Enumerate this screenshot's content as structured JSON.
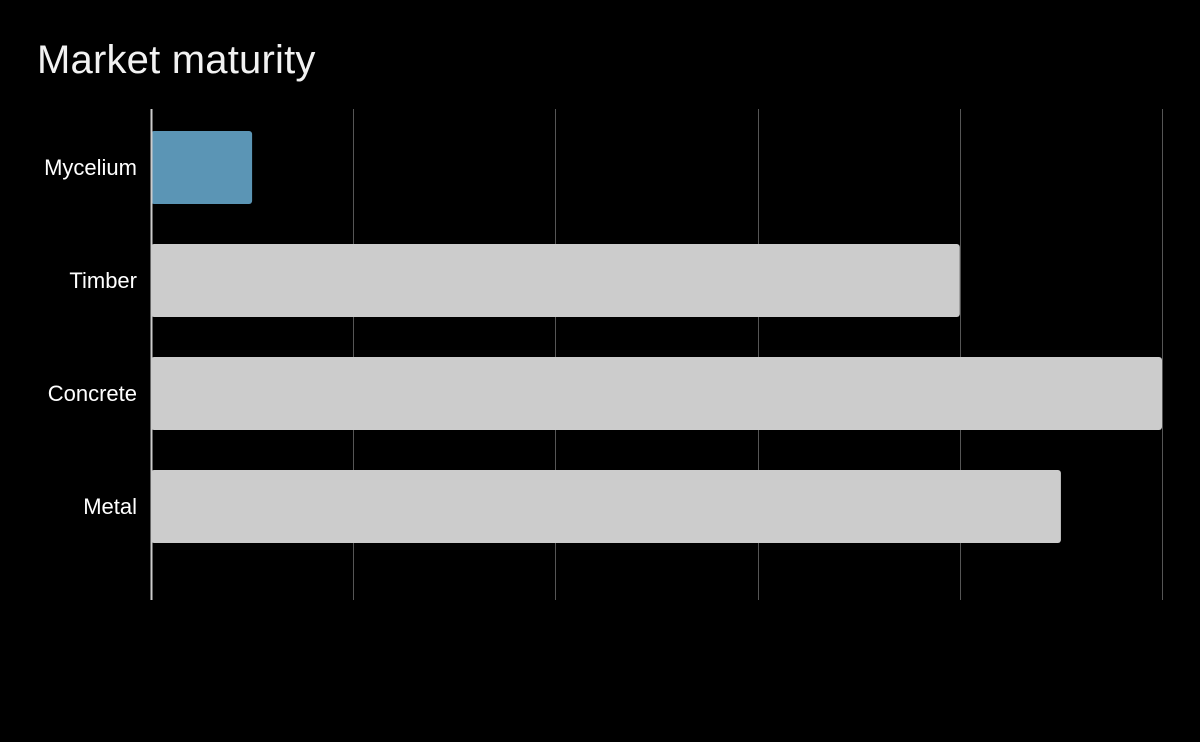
{
  "title": "Market maturity",
  "chart_data": {
    "type": "bar",
    "orientation": "horizontal",
    "title": "Market maturity",
    "xlabel": "",
    "ylabel": "",
    "categories": [
      "Mycelium",
      "Timber",
      "Concrete",
      "Metal"
    ],
    "values": [
      1,
      8,
      10,
      9
    ],
    "xlim": [
      0,
      10
    ],
    "grid": true,
    "tick_labels_x": [],
    "colors": {
      "highlight": "#5b95b5",
      "default": "#cccccc",
      "grid": "#555555",
      "axis": "#cccccc",
      "text": "#ffffff",
      "background": "#000000"
    },
    "highlight_category": "Mycelium"
  }
}
